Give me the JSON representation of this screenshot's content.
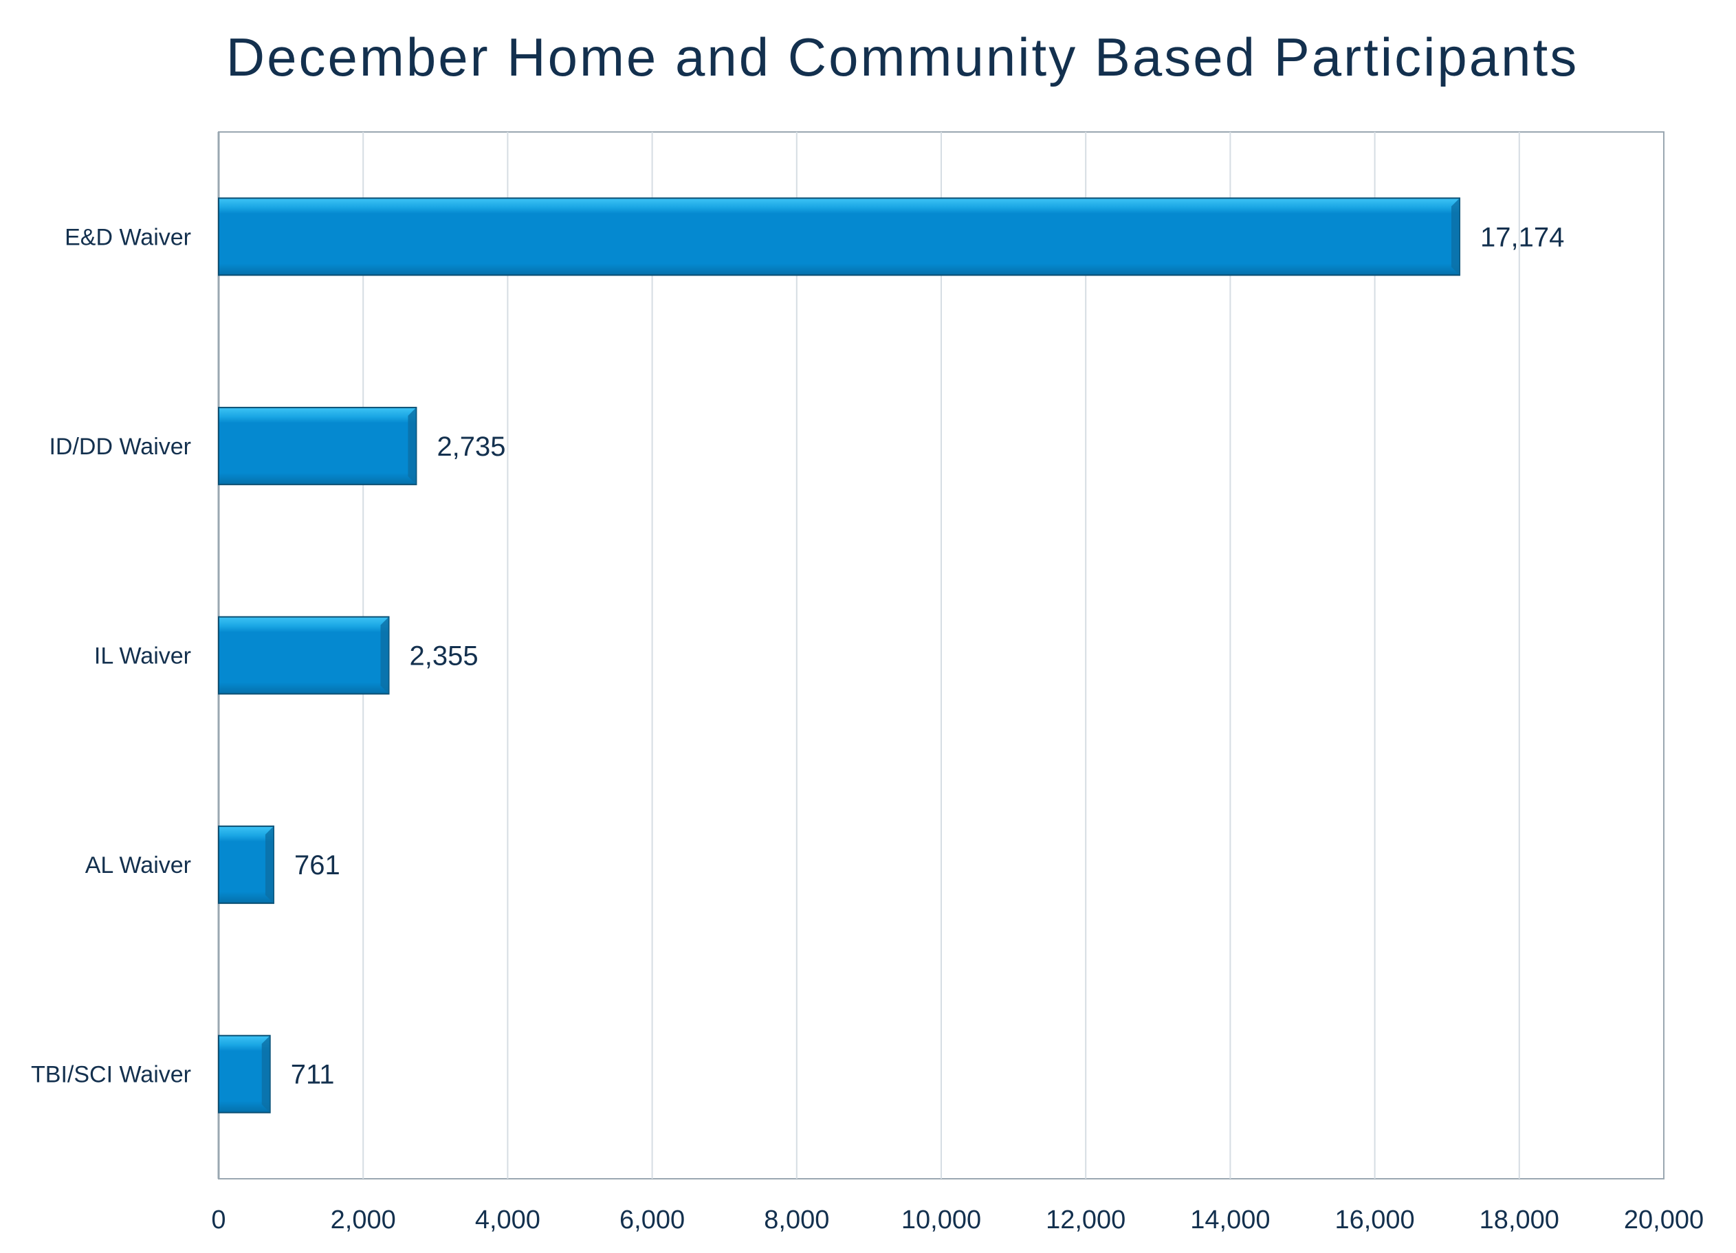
{
  "chart_data": {
    "type": "bar",
    "orientation": "horizontal",
    "title": "December Home and Community Based Participants",
    "xlabel": "",
    "ylabel": "",
    "categories": [
      "E&D Waiver",
      "ID/DD Waiver",
      "IL Waiver",
      "AL Waiver",
      "TBI/SCI Waiver"
    ],
    "values": [
      17174,
      2735,
      2355,
      761,
      711
    ],
    "data_labels": [
      "17,174",
      "2,735",
      "2,355",
      "761",
      "711"
    ],
    "xlim": [
      0,
      20000
    ],
    "x_ticks": [
      0,
      2000,
      4000,
      6000,
      8000,
      10000,
      12000,
      14000,
      16000,
      18000,
      20000
    ],
    "x_tick_labels": [
      "0",
      "2,000",
      "4,000",
      "6,000",
      "8,000",
      "10,000",
      "12,000",
      "14,000",
      "16,000",
      "18,000",
      "20,000"
    ],
    "grid": "vertical",
    "legend": "none",
    "colors": {
      "bar": "#0589d0",
      "bar_top": "#3dc3f5",
      "bar_edge": "#0b4f73",
      "grid": "#d6dde3",
      "frame": "#9aa7b1",
      "text": "#13304e"
    }
  }
}
